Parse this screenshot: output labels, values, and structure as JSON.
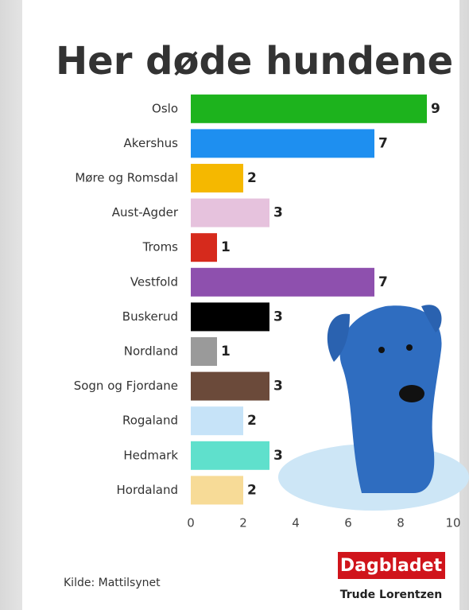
{
  "chart_data": {
    "type": "bar",
    "orientation": "horizontal",
    "title": "Her døde hundene",
    "categories": [
      "Oslo",
      "Akershus",
      "Møre og Romsdal",
      "Aust-Agder",
      "Troms",
      "Vestfold",
      "Buskerud",
      "Nordland",
      "Sogn og Fjordane",
      "Rogaland",
      "Hedmark",
      "Hordaland"
    ],
    "values": [
      9,
      7,
      2,
      3,
      1,
      7,
      3,
      1,
      3,
      2,
      3,
      2
    ],
    "colors": [
      "#1db31d",
      "#1e8ff0",
      "#f5b800",
      "#e6c2dd",
      "#d62a1c",
      "#8e50ae",
      "#000000",
      "#9a9a9a",
      "#6b4a3a",
      "#c6e3f8",
      "#5fe0cc",
      "#f7db97"
    ],
    "xlim": [
      0,
      10
    ],
    "xticks": [
      0,
      2,
      4,
      6,
      8,
      10
    ],
    "source": "Kilde: Mattilsynet",
    "logo": "Dagbladet",
    "credit": "Trude Lorentzen"
  }
}
